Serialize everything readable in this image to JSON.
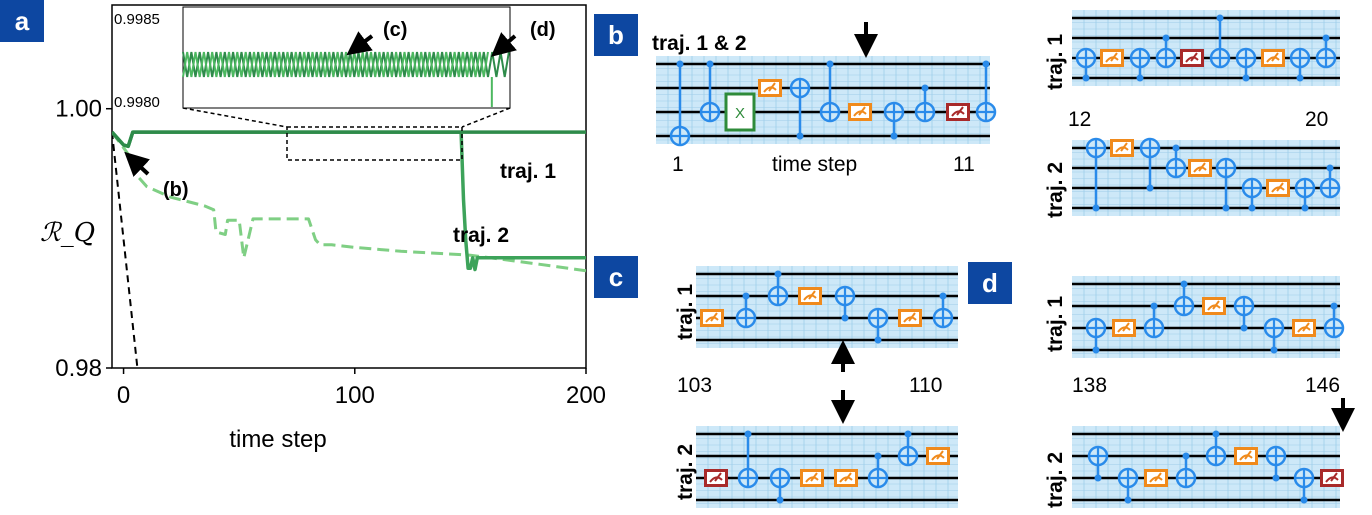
{
  "panels": {
    "a": "a",
    "b": "b",
    "c": "c",
    "d": "d",
    "color": "#0d47a1"
  },
  "colors": {
    "traj1": "#2e8b4a",
    "traj2": "#3da35a",
    "traj2_light": "#7fcf84",
    "dashed_black": "#000000",
    "inset_dark": "#2e8b4a",
    "inset_light": "#4cb860",
    "circuit_bg": "#cde8f8",
    "circuit_grid": "#9ecde9",
    "cnot": "#2a8bea",
    "measure_orange": "#f08a1c",
    "measure_red": "#a82a2a",
    "x_green": "#2e8b3a"
  },
  "chart_data": {
    "type": "line",
    "xlabel": "time step",
    "ylabel": "ℛ_Q",
    "xlim": [
      -5,
      200
    ],
    "ylim": [
      0.98,
      1.008
    ],
    "xticks": [
      0,
      100,
      200
    ],
    "yticks": [
      0.98,
      1.0
    ],
    "ytick_labels": [
      "0.98",
      "1.00"
    ],
    "xtick_labels": [
      "0",
      "100",
      "200"
    ],
    "series": [
      {
        "name": "traj. 1",
        "style": "solid",
        "x": [
          -5,
          0,
          2,
          4,
          200
        ],
        "y": [
          0.9982,
          0.9972,
          0.9971,
          0.9982,
          0.9982
        ]
      },
      {
        "name": "traj. 2",
        "style": "solid",
        "x": [
          -5,
          0,
          2,
          4,
          146,
          147,
          148,
          149,
          150,
          151,
          152,
          153,
          200
        ],
        "y": [
          0.9982,
          0.9972,
          0.9971,
          0.9982,
          0.9982,
          0.993,
          0.9898,
          0.9877,
          0.9877,
          0.9885,
          0.9876,
          0.9885,
          0.9885
        ]
      },
      {
        "style": "dashed",
        "x": [
          -5,
          2,
          5,
          10,
          20,
          35,
          39,
          40,
          44,
          45,
          50,
          52,
          56,
          80,
          83,
          85,
          90,
          100,
          120,
          150,
          180,
          200
        ],
        "y": [
          0.9982,
          0.9965,
          0.995,
          0.994,
          0.9932,
          0.9925,
          0.9922,
          0.9905,
          0.9903,
          0.9914,
          0.9914,
          0.9885,
          0.9915,
          0.9915,
          0.9899,
          0.9895,
          0.9895,
          0.9893,
          0.989,
          0.9887,
          0.988,
          0.9875
        ]
      },
      {
        "style": "dashed-black",
        "x": [
          -5,
          6
        ],
        "y": [
          0.9982,
          0.98
        ]
      }
    ],
    "annotations": {
      "b": "(b)",
      "c": "(c)",
      "d": "(d)",
      "traj1": "traj. 1",
      "traj2": "traj. 2"
    },
    "inset": {
      "ylim": [
        0.998,
        0.9985
      ],
      "ytick_labels": [
        "0.9985",
        "0.9980"
      ],
      "xlim": [
        75,
        165
      ],
      "drop_at": 160
    }
  },
  "circuits": {
    "b": {
      "title": "traj. 1 & 2",
      "start": "1",
      "end": "11",
      "axis": "time step",
      "x_gate": "X"
    },
    "b_right": {
      "t1_label": "traj. 1",
      "t2_label": "traj. 2",
      "start": "12",
      "end": "20"
    },
    "c": {
      "t1_label": "traj. 1",
      "t2_label": "traj. 2",
      "start": "103",
      "end": "110"
    },
    "d": {
      "t1_label": "traj. 1",
      "t2_label": "traj. 2",
      "start": "138",
      "end": "146"
    }
  }
}
